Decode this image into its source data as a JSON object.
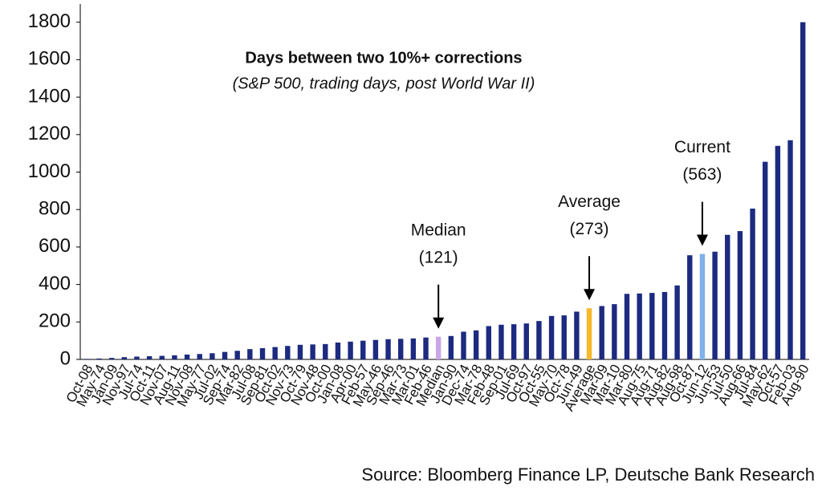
{
  "chart_data": {
    "type": "bar",
    "title": "Days between two 10%+ corrections",
    "subtitle": "(S&P 500, trading days, post World War II)",
    "source": "Source: Bloomberg Finance LP, Deutsche Bank Research",
    "categories": [
      "Oct-08",
      "May-74",
      "Jan-09",
      "Nov-97",
      "Jul-74",
      "Oct-11",
      "Nov-07",
      "Aug-11",
      "Nov-08",
      "May-77",
      "Jul-02",
      "Sep-74",
      "Mar-82",
      "Jul-08",
      "Sep-81",
      "Oct-02",
      "Nov-73",
      "Oct-79",
      "Nov-48",
      "Oct-00",
      "Jan-08",
      "Apr-00",
      "Feb-57",
      "May-46",
      "Sep-46",
      "Mar-73",
      "Mar-01",
      "Feb-46",
      "Median",
      "Jan-90",
      "Dec-74",
      "Mar-78",
      "Feb-48",
      "Sep-01",
      "Jul-69",
      "Oct-97",
      "Oct-55",
      "May-70",
      "Oct-78",
      "Jun-49",
      "Average",
      "Mar-09",
      "Mar-10",
      "Mar-80",
      "Aug-75",
      "Aug-71",
      "Aug-82",
      "Aug-98",
      "Oct-87",
      "Jun-12",
      "Jun-53",
      "Jul-50",
      "Aug-66",
      "Jul-84",
      "May-62",
      "Oct-57",
      "Feb-03",
      "Aug-90"
    ],
    "values": [
      3,
      5,
      8,
      12,
      15,
      17,
      19,
      22,
      26,
      29,
      33,
      40,
      46,
      55,
      60,
      66,
      72,
      78,
      80,
      82,
      90,
      95,
      100,
      104,
      108,
      110,
      112,
      117,
      121,
      125,
      148,
      155,
      178,
      185,
      188,
      192,
      205,
      232,
      235,
      255,
      273,
      285,
      295,
      350,
      352,
      355,
      360,
      395,
      556,
      563,
      575,
      665,
      685,
      805,
      1055,
      1140,
      1170,
      1800
    ],
    "color": "#1c2a80",
    "highlight_colors": {
      "Median": "#c9a6e8",
      "Average": "#f5b829",
      "Jun-12": "#7fb2ec"
    },
    "annotations": [
      {
        "label": "Median",
        "value_label": "(121)",
        "target": "Median"
      },
      {
        "label": "Average",
        "value_label": "(273)",
        "target": "Average"
      },
      {
        "label": "Current",
        "value_label": "(563)",
        "target": "Jun-12"
      }
    ],
    "ylim": [
      0,
      1880
    ],
    "yticks": [
      0,
      200,
      400,
      600,
      800,
      1000,
      1200,
      1400,
      1600,
      1800
    ],
    "grid": false
  }
}
